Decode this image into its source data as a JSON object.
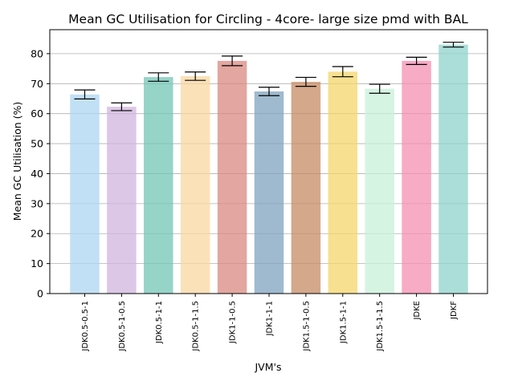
{
  "chart_data": {
    "type": "bar",
    "title": "Mean GC Utilisation for Circling - 4core- large size pmd with BAL",
    "xlabel": "JVM's",
    "ylabel": "Mean GC Utilisation (%)",
    "ylim": [
      0,
      88
    ],
    "yticks": [
      0,
      10,
      20,
      30,
      40,
      50,
      60,
      70,
      80
    ],
    "grid": "horizontal",
    "categories": [
      "JDK0.5-0.5-1",
      "JDK0.5-1-0.5",
      "JDK0.5-1-1",
      "JDK0.5-1-1.5",
      "JDK1-1-0.5",
      "JDK1-1-1",
      "JDK1.5-1-0.5",
      "JDK1.5-1-1",
      "JDK1.5-1-1.5",
      "JDKE",
      "JDKF"
    ],
    "values": [
      66.4,
      62.3,
      72.2,
      72.5,
      77.6,
      67.4,
      70.6,
      74.0,
      68.3,
      77.6,
      83.0
    ],
    "errors": [
      1.5,
      1.3,
      1.4,
      1.4,
      1.6,
      1.4,
      1.5,
      1.7,
      1.5,
      1.2,
      0.8
    ],
    "colors": [
      "#aed6f1",
      "#d2b4de",
      "#73c6b6",
      "#fad7a0",
      "#d98880",
      "#7fa3bd",
      "#c58b63",
      "#f4d56a",
      "#c8f0d8",
      "#f48fb1",
      "#8fd3cb"
    ],
    "bar_alpha": 0.75
  }
}
